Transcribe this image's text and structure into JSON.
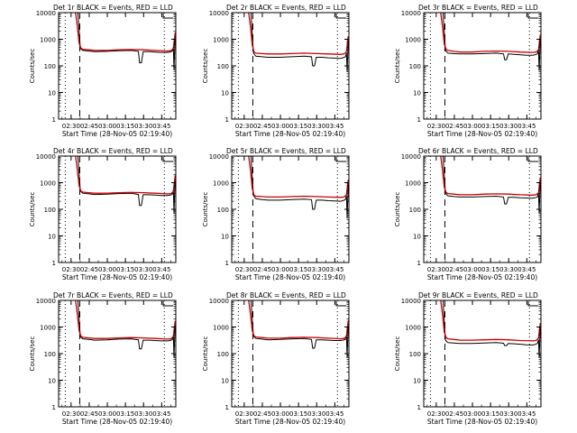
{
  "figure": {
    "xlabel": "Start Time (28-Nov-05 02:19:40)",
    "ylabel": "Counts/sec",
    "xtick_labels": [
      "02:30",
      "02:45",
      "03:00",
      "03:15",
      "03:30",
      "03:45"
    ],
    "ytick_labels": [
      "1",
      "10",
      "100",
      "1000",
      "10000"
    ],
    "x_ticks_min": [
      10.33,
      25.33,
      40.33,
      55.33,
      70.33,
      85.33
    ],
    "xlim_min": [
      0,
      97
    ],
    "ylim": [
      1,
      10000
    ],
    "y_scale": "log",
    "colors": {
      "events": "#000000",
      "lld": "#cc0000",
      "axes": "#000000"
    }
  },
  "chart_data": [
    {
      "type": "line",
      "title": "Det 1r BLACK = Events, RED = LLD",
      "x_unit": "minutes after 02:19:40",
      "xlim": [
        0,
        97
      ],
      "ylim": [
        1,
        10000
      ],
      "y_scale": "log",
      "vlines": [
        {
          "x": 5.5,
          "style": "dotted"
        },
        {
          "x": 17.5,
          "style": "dashed"
        },
        {
          "x": 87.5,
          "style": "dotted"
        }
      ],
      "series": [
        {
          "color": "#000000",
          "x": [
            16,
            18,
            20,
            25,
            30,
            40,
            50,
            60,
            66,
            67,
            68.5,
            70,
            75,
            80,
            85,
            90,
            92,
            94,
            95,
            95.5,
            96.5
          ],
          "y": [
            10000,
            450,
            380,
            360,
            340,
            350,
            370,
            380,
            350,
            130,
            130,
            340,
            340,
            330,
            320,
            320,
            330,
            350,
            500,
            70,
            1500
          ]
        },
        {
          "color": "#cc0000",
          "x": [
            14,
            15.5,
            17,
            18.5,
            20,
            25,
            30,
            40,
            50,
            60,
            70,
            80,
            90,
            93,
            95,
            96.5
          ],
          "y": [
            10000,
            3000,
            700,
            460,
            420,
            400,
            380,
            380,
            400,
            410,
            400,
            380,
            360,
            370,
            450,
            1800
          ]
        }
      ]
    },
    {
      "type": "line",
      "title": "Det 2r BLACK = Events, RED = LLD",
      "x_unit": "minutes after 02:19:40",
      "xlim": [
        0,
        97
      ],
      "ylim": [
        1,
        10000
      ],
      "y_scale": "log",
      "vlines": [
        {
          "x": 5.5,
          "style": "dotted"
        },
        {
          "x": 17.5,
          "style": "dashed"
        },
        {
          "x": 87.5,
          "style": "dotted"
        }
      ],
      "series": [
        {
          "color": "#000000",
          "x": [
            16,
            18,
            20,
            25,
            30,
            40,
            50,
            60,
            66,
            67,
            68.5,
            70,
            75,
            80,
            85,
            90,
            92,
            94,
            95,
            95.5,
            96.5
          ],
          "y": [
            10000,
            300,
            230,
            220,
            210,
            210,
            220,
            230,
            220,
            100,
            100,
            210,
            210,
            200,
            195,
            190,
            200,
            220,
            300,
            60,
            900
          ]
        },
        {
          "color": "#cc0000",
          "x": [
            14,
            15.5,
            17,
            18.5,
            20,
            25,
            30,
            40,
            50,
            60,
            70,
            80,
            90,
            93,
            95,
            96.5
          ],
          "y": [
            10000,
            3000,
            600,
            330,
            300,
            290,
            280,
            280,
            290,
            300,
            290,
            280,
            270,
            280,
            340,
            1300
          ]
        }
      ]
    },
    {
      "type": "line",
      "title": "Det 3r BLACK = Events, RED = LLD",
      "x_unit": "minutes after 02:19:40",
      "xlim": [
        0,
        97
      ],
      "ylim": [
        1,
        10000
      ],
      "y_scale": "log",
      "vlines": [
        {
          "x": 5.5,
          "style": "dotted"
        },
        {
          "x": 17.5,
          "style": "dashed"
        },
        {
          "x": 87.5,
          "style": "dotted"
        }
      ],
      "series": [
        {
          "color": "#000000",
          "x": [
            16,
            18,
            20,
            25,
            30,
            40,
            50,
            60,
            66,
            67,
            68.5,
            70,
            75,
            80,
            85,
            90,
            92,
            94,
            95,
            95.5,
            96.5
          ],
          "y": [
            10000,
            380,
            300,
            290,
            280,
            280,
            290,
            300,
            280,
            170,
            170,
            280,
            270,
            260,
            250,
            250,
            260,
            280,
            400,
            65,
            1100
          ]
        },
        {
          "color": "#cc0000",
          "x": [
            14,
            15.5,
            17,
            18.5,
            20,
            25,
            30,
            40,
            50,
            60,
            70,
            80,
            90,
            93,
            95,
            96.5
          ],
          "y": [
            10000,
            3000,
            650,
            420,
            380,
            350,
            330,
            330,
            350,
            360,
            350,
            330,
            320,
            330,
            400,
            1500
          ]
        }
      ]
    },
    {
      "type": "line",
      "title": "Det 4r BLACK = Events, RED = LLD",
      "x_unit": "minutes after 02:19:40",
      "xlim": [
        0,
        97
      ],
      "ylim": [
        1,
        10000
      ],
      "y_scale": "log",
      "vlines": [
        {
          "x": 5.5,
          "style": "dotted"
        },
        {
          "x": 17.5,
          "style": "dashed"
        },
        {
          "x": 87.5,
          "style": "dotted"
        }
      ],
      "series": [
        {
          "color": "#000000",
          "x": [
            16,
            18,
            20,
            25,
            30,
            40,
            50,
            60,
            66,
            67,
            68.5,
            70,
            75,
            80,
            85,
            90,
            92,
            94,
            95,
            95.5,
            96.5
          ],
          "y": [
            10000,
            480,
            400,
            380,
            360,
            370,
            390,
            400,
            360,
            140,
            140,
            350,
            350,
            340,
            330,
            330,
            340,
            360,
            520,
            70,
            1600
          ]
        },
        {
          "color": "#cc0000",
          "x": [
            14,
            15.5,
            17,
            18.5,
            20,
            25,
            30,
            40,
            50,
            60,
            70,
            80,
            90,
            93,
            95,
            96.5
          ],
          "y": [
            10000,
            3000,
            750,
            480,
            440,
            420,
            400,
            400,
            420,
            430,
            420,
            400,
            380,
            390,
            470,
            1900
          ]
        }
      ]
    },
    {
      "type": "line",
      "title": "Det 5r BLACK = Events, RED = LLD",
      "x_unit": "minutes after 02:19:40",
      "xlim": [
        0,
        97
      ],
      "ylim": [
        1,
        10000
      ],
      "y_scale": "log",
      "vlines": [
        {
          "x": 5.5,
          "style": "dotted"
        },
        {
          "x": 17.5,
          "style": "dashed"
        },
        {
          "x": 87.5,
          "style": "dotted"
        }
      ],
      "series": [
        {
          "color": "#000000",
          "x": [
            16,
            18,
            20,
            25,
            30,
            40,
            50,
            60,
            66,
            67,
            68.5,
            70,
            75,
            80,
            85,
            90,
            92,
            94,
            95,
            95.5,
            96.5
          ],
          "y": [
            10000,
            330,
            250,
            230,
            220,
            220,
            230,
            240,
            230,
            100,
            100,
            220,
            220,
            210,
            205,
            200,
            210,
            230,
            320,
            45,
            900
          ]
        },
        {
          "color": "#cc0000",
          "x": [
            14,
            15.5,
            17,
            18.5,
            20,
            25,
            30,
            40,
            50,
            60,
            70,
            80,
            90,
            93,
            95,
            96.5
          ],
          "y": [
            10000,
            3000,
            600,
            340,
            310,
            300,
            290,
            290,
            300,
            310,
            300,
            290,
            280,
            290,
            350,
            1300
          ]
        }
      ]
    },
    {
      "type": "line",
      "title": "Det 6r BLACK = Events, RED = LLD",
      "x_unit": "minutes after 02:19:40",
      "xlim": [
        0,
        97
      ],
      "ylim": [
        1,
        10000
      ],
      "y_scale": "log",
      "vlines": [
        {
          "x": 5.5,
          "style": "dotted"
        },
        {
          "x": 17.5,
          "style": "dashed"
        },
        {
          "x": 87.5,
          "style": "dotted"
        }
      ],
      "series": [
        {
          "color": "#000000",
          "x": [
            16,
            18,
            20,
            25,
            30,
            40,
            50,
            60,
            66,
            67,
            68.5,
            70,
            75,
            80,
            85,
            90,
            92,
            94,
            95,
            95.5,
            96.5
          ],
          "y": [
            10000,
            400,
            320,
            300,
            290,
            290,
            300,
            310,
            290,
            160,
            160,
            280,
            280,
            270,
            265,
            260,
            270,
            290,
            420,
            70,
            1300
          ]
        },
        {
          "color": "#cc0000",
          "x": [
            14,
            15.5,
            17,
            18.5,
            20,
            25,
            30,
            40,
            50,
            60,
            70,
            80,
            90,
            93,
            95,
            96.5
          ],
          "y": [
            10000,
            3000,
            680,
            430,
            390,
            370,
            350,
            350,
            370,
            380,
            370,
            350,
            340,
            350,
            420,
            1600
          ]
        }
      ]
    },
    {
      "type": "line",
      "title": "Det 7r BLACK = Events, RED = LLD",
      "x_unit": "minutes after 02:19:40",
      "xlim": [
        0,
        97
      ],
      "ylim": [
        1,
        10000
      ],
      "y_scale": "log",
      "vlines": [
        {
          "x": 5.5,
          "style": "dotted"
        },
        {
          "x": 17.5,
          "style": "dashed"
        },
        {
          "x": 87.5,
          "style": "dotted"
        }
      ],
      "series": [
        {
          "color": "#000000",
          "x": [
            16,
            18,
            20,
            25,
            30,
            40,
            50,
            60,
            66,
            67,
            68.5,
            70,
            75,
            80,
            85,
            90,
            92,
            94,
            95,
            95.5,
            96.5
          ],
          "y": [
            10000,
            430,
            360,
            340,
            320,
            330,
            350,
            360,
            330,
            150,
            150,
            320,
            320,
            310,
            300,
            300,
            310,
            330,
            480,
            70,
            1400
          ]
        },
        {
          "color": "#cc0000",
          "x": [
            14,
            15.5,
            17,
            18.5,
            20,
            25,
            30,
            40,
            50,
            60,
            70,
            80,
            90,
            93,
            95,
            96.5
          ],
          "y": [
            10000,
            3000,
            720,
            450,
            410,
            390,
            370,
            370,
            390,
            400,
            390,
            370,
            350,
            360,
            440,
            1700
          ]
        }
      ]
    },
    {
      "type": "line",
      "title": "Det 8r BLACK = Events, RED = LLD",
      "x_unit": "minutes after 02:19:40",
      "xlim": [
        0,
        97
      ],
      "ylim": [
        1,
        10000
      ],
      "y_scale": "log",
      "vlines": [
        {
          "x": 5.5,
          "style": "dotted"
        },
        {
          "x": 17.5,
          "style": "dashed"
        },
        {
          "x": 87.5,
          "style": "dotted"
        }
      ],
      "series": [
        {
          "color": "#000000",
          "x": [
            16,
            18,
            20,
            25,
            30,
            40,
            50,
            60,
            66,
            67,
            68.5,
            70,
            75,
            80,
            85,
            90,
            92,
            94,
            95,
            95.5,
            96.5
          ],
          "y": [
            10000,
            450,
            370,
            350,
            330,
            340,
            360,
            370,
            340,
            160,
            160,
            330,
            330,
            320,
            310,
            310,
            320,
            340,
            490,
            70,
            1500
          ]
        },
        {
          "color": "#cc0000",
          "x": [
            14,
            15.5,
            17,
            18.5,
            20,
            25,
            30,
            40,
            50,
            60,
            70,
            80,
            90,
            93,
            95,
            96.5
          ],
          "y": [
            10000,
            3000,
            730,
            460,
            420,
            400,
            380,
            380,
            400,
            410,
            400,
            380,
            360,
            370,
            450,
            1800
          ]
        }
      ]
    },
    {
      "type": "line",
      "title": "Det 9r BLACK = Events, RED = LLD",
      "x_unit": "minutes after 02:19:40",
      "xlim": [
        0,
        97
      ],
      "ylim": [
        1,
        10000
      ],
      "y_scale": "log",
      "vlines": [
        {
          "x": 5.5,
          "style": "dotted"
        },
        {
          "x": 17.5,
          "style": "dashed"
        },
        {
          "x": 87.5,
          "style": "dotted"
        }
      ],
      "series": [
        {
          "color": "#000000",
          "x": [
            16,
            18,
            20,
            25,
            30,
            40,
            50,
            60,
            66,
            67,
            68.5,
            70,
            75,
            80,
            85,
            90,
            92,
            94,
            95,
            95.5,
            96.5
          ],
          "y": [
            10000,
            320,
            260,
            250,
            240,
            240,
            250,
            260,
            245,
            200,
            200,
            240,
            235,
            225,
            215,
            210,
            220,
            240,
            330,
            70,
            1000
          ]
        },
        {
          "color": "#cc0000",
          "x": [
            14,
            15.5,
            17,
            18.5,
            20,
            25,
            30,
            40,
            50,
            60,
            70,
            80,
            90,
            93,
            95,
            96.5
          ],
          "y": [
            10000,
            3000,
            640,
            400,
            360,
            340,
            320,
            320,
            330,
            340,
            330,
            310,
            300,
            310,
            380,
            1400
          ]
        }
      ]
    }
  ]
}
